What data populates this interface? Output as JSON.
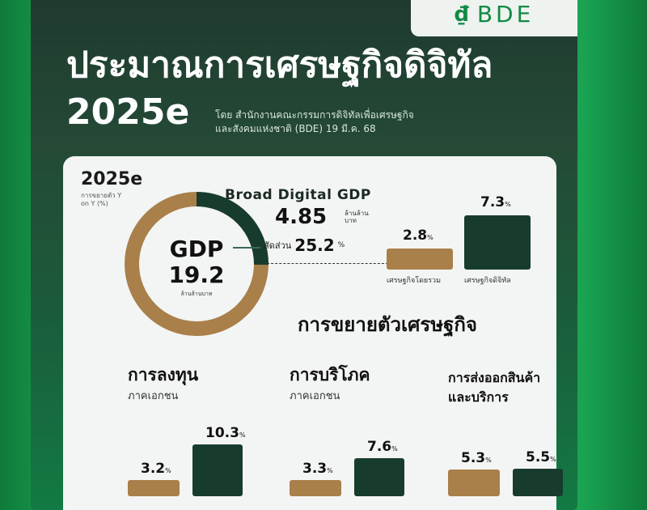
{
  "header": {
    "logo_text": "BDE",
    "title": "ประมาณการเศรษฐกิจดิจิทัล",
    "title_year": "2025e",
    "source_line1": "โดย สำนักงานคณะกรรมการดิจิทัลเพื่อเศรษฐกิจ",
    "source_line2": "และสังคมแห่งชาติ (BDE) 19 มี.ค. 68"
  },
  "colors": {
    "gold": "#a97f4a",
    "dark_green": "#173c2d",
    "bg_green": "#1fb35a"
  },
  "chart_data": [
    {
      "type": "pie",
      "title": "Broad Digital GDP",
      "center_label": "GDP",
      "center_value": "19.2",
      "center_unit": "ล้านล้านบาท",
      "year_label": "2025e",
      "year_sub": "การขยายตัว Y on Y (%)",
      "broad_value": "4.85",
      "broad_unit": "ล้านล้านบาท",
      "share_label": "สัดส่วน",
      "share_value": "25.2",
      "share_unit": "%",
      "slices": [
        {
          "name": "Broad Digital GDP",
          "value": 25.2
        },
        {
          "name": "other",
          "value": 74.8
        }
      ]
    },
    {
      "type": "bar",
      "categories": [
        "เศรษฐกิจโดยรวม",
        "เศรษฐกิจดิจิทัล"
      ],
      "values": [
        2.8,
        7.3
      ],
      "value_labels": [
        "2.8",
        "7.3"
      ],
      "unit": "%",
      "ylim": [
        0,
        8
      ]
    },
    {
      "type": "bar",
      "section_title": "การขยายตัวเศรษฐกิจ",
      "groups": [
        {
          "title": "การลงทุน",
          "subtitle": "ภาคเอกชน",
          "values": [
            3.2,
            10.3
          ],
          "labels": [
            "3.2",
            "10.3"
          ]
        },
        {
          "title": "การบริโภค",
          "subtitle": "ภาคเอกชน",
          "values": [
            3.3,
            7.6
          ],
          "labels": [
            "3.3",
            "7.6"
          ]
        },
        {
          "title": "การส่งออกสินค้า",
          "subtitle": "และบริการ",
          "values": [
            5.3,
            5.5
          ],
          "labels": [
            "5.3",
            "5.5"
          ]
        }
      ],
      "unit": "%"
    }
  ]
}
